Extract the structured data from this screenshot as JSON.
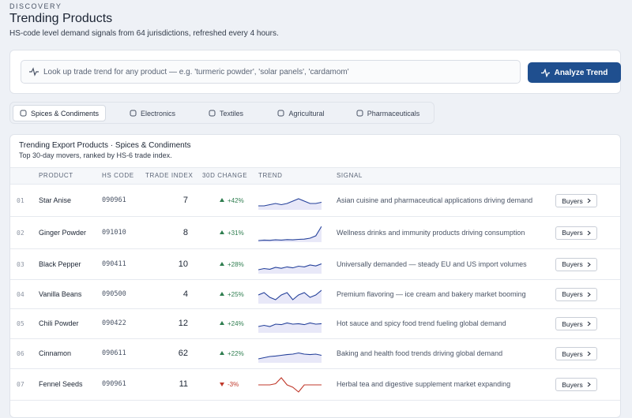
{
  "header": {
    "eyebrow": "DISCOVERY",
    "title": "Trending Products",
    "subtitle": "HS-code level demand signals from 64 jurisdictions, refreshed every 4 hours."
  },
  "search": {
    "placeholder": "Look up trade trend for any product — e.g. 'turmeric powder', 'solar panels', 'cardamom'",
    "button": "Analyze Trend"
  },
  "tabs": {
    "items": [
      "Spices & Condiments",
      "Electronics",
      "Textiles",
      "Agricultural",
      "Pharmaceuticals"
    ],
    "active": 0
  },
  "table": {
    "title": "Trending Export Products · Spices & Condiments",
    "subtitle": "Top 30-day movers, ranked by HS-6 trade index.",
    "columns": [
      "PRODUCT",
      "HS CODE",
      "TRADE INDEX",
      "30D CHANGE",
      "TREND",
      "SIGNAL"
    ],
    "rows": [
      {
        "rank": "01",
        "product": "Star Anise",
        "hs_code": "090961",
        "trade_index": 7,
        "change": "+42%",
        "direction": "up",
        "trend": [
          3,
          3,
          3.5,
          4,
          3.5,
          4,
          5,
          6,
          5,
          4,
          4,
          4.5
        ],
        "signal": "Asian cuisine and pharmaceutical applications driving demand",
        "action": "Buyers"
      },
      {
        "rank": "02",
        "product": "Ginger Powder",
        "hs_code": "091010",
        "trade_index": 8,
        "change": "+31%",
        "direction": "up",
        "trend": [
          2,
          2.2,
          2.1,
          2.3,
          2.2,
          2.4,
          2.3,
          2.5,
          2.6,
          3,
          4,
          8
        ],
        "signal": "Wellness drinks and immunity products driving consumption",
        "action": "Buyers"
      },
      {
        "rank": "03",
        "product": "Black Pepper",
        "hs_code": "090411",
        "trade_index": 10,
        "change": "+28%",
        "direction": "up",
        "trend": [
          3,
          3.5,
          3.2,
          4,
          3.6,
          4.2,
          3.8,
          4.5,
          4.2,
          5,
          4.6,
          5.5
        ],
        "signal": "Universally demanded — steady EU and US import volumes",
        "action": "Buyers"
      },
      {
        "rank": "04",
        "product": "Vanilla Beans",
        "hs_code": "090500",
        "trade_index": 4,
        "change": "+25%",
        "direction": "up",
        "trend": [
          5,
          6,
          4,
          3,
          5,
          6,
          3,
          5,
          6,
          4,
          5,
          7
        ],
        "signal": "Premium flavoring — ice cream and bakery market booming",
        "action": "Buyers"
      },
      {
        "rank": "05",
        "product": "Chili Powder",
        "hs_code": "090422",
        "trade_index": 12,
        "change": "+24%",
        "direction": "up",
        "trend": [
          4,
          4.5,
          4,
          5,
          4.8,
          5.5,
          5,
          5.2,
          4.8,
          5.5,
          5,
          5.2
        ],
        "signal": "Hot sauce and spicy food trend fueling global demand",
        "action": "Buyers"
      },
      {
        "rank": "06",
        "product": "Cinnamon",
        "hs_code": "090611",
        "trade_index": 62,
        "change": "+22%",
        "direction": "up",
        "trend": [
          3,
          3.5,
          4,
          4.2,
          4.5,
          4.8,
          5,
          5.5,
          5,
          4.8,
          5,
          4.5
        ],
        "signal": "Baking and health food trends driving global demand",
        "action": "Buyers"
      },
      {
        "rank": "07",
        "product": "Fennel Seeds",
        "hs_code": "090961",
        "trade_index": 11,
        "change": "-3%",
        "direction": "down",
        "trend": [
          5,
          5,
          5,
          5.5,
          8,
          5,
          4,
          2,
          5,
          5,
          5,
          5
        ],
        "signal": "Herbal tea and digestive supplement market expanding",
        "action": "Buyers"
      }
    ]
  }
}
